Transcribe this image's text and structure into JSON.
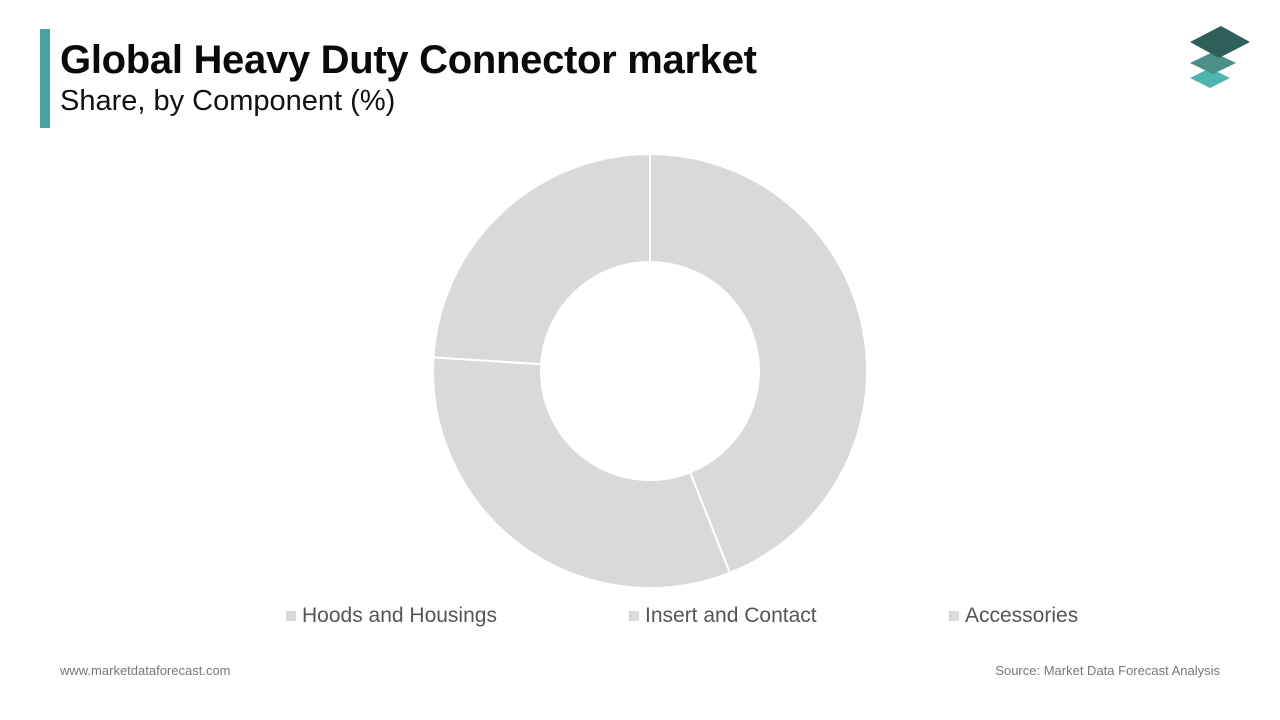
{
  "header": {
    "title": "Global Heavy Duty Connector market",
    "subtitle": "Share, by Component (%)",
    "accent_color": "#4aa3a2"
  },
  "logo": {
    "icon": "stacked-layers-logo-icon",
    "colors": [
      "#2f5f5a",
      "#4a8f88",
      "#4fb5b0"
    ]
  },
  "chart_data": {
    "type": "pie",
    "style": "donut",
    "title": "Global Heavy Duty Connector market",
    "subtitle": "Share, by Component (%)",
    "categories": [
      "Hoods and Housings",
      "Insert and Contact",
      "Accessories"
    ],
    "values": [
      44,
      32,
      24
    ],
    "unit": "%",
    "colors": [
      "#d9d9d9",
      "#d9d9d9",
      "#d9d9d9"
    ],
    "legend_position": "bottom",
    "data_labels": false
  },
  "footer": {
    "website": "www.marketdataforecast.com",
    "source": "Source: Market Data Forecast Analysis"
  }
}
